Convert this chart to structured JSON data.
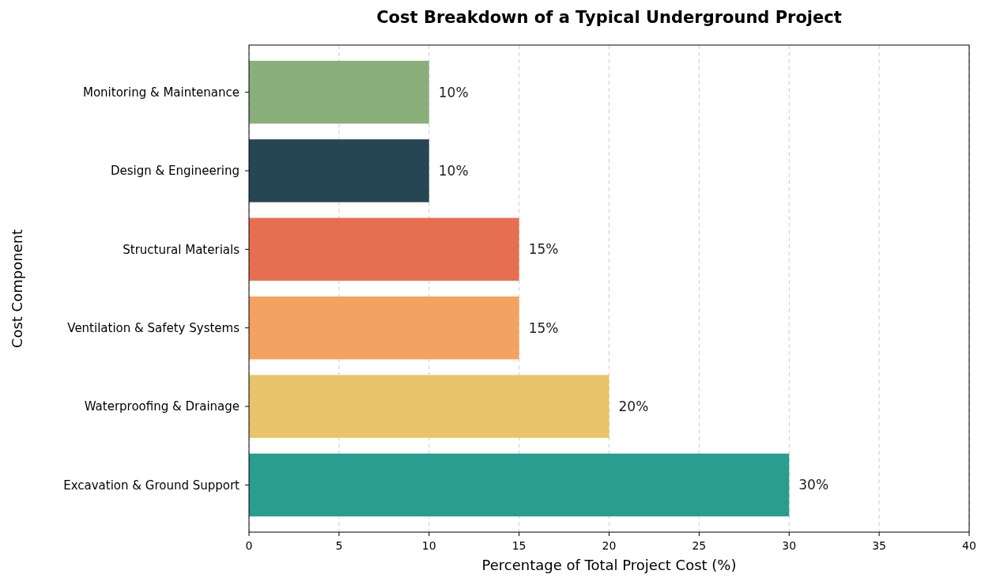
{
  "chart_data": {
    "type": "bar",
    "orientation": "horizontal",
    "title": "Cost Breakdown of a Typical Underground Project",
    "xlabel": "Percentage of Total Project Cost (%)",
    "ylabel": "Cost Component",
    "categories": [
      "Monitoring & Maintenance",
      "Design & Engineering",
      "Structural Materials",
      "Ventilation & Safety Systems",
      "Waterproofing & Drainage",
      "Excavation & Ground Support"
    ],
    "values": [
      10,
      10,
      15,
      15,
      20,
      30
    ],
    "colors": [
      "#8aaf7a",
      "#264653",
      "#e76f51",
      "#f4a261",
      "#e9c46a",
      "#2a9d8f"
    ],
    "value_labels": [
      "10%",
      "10%",
      "15%",
      "15%",
      "20%",
      "30%"
    ],
    "xlim": [
      0,
      40
    ],
    "xticks": [
      0,
      5,
      10,
      15,
      20,
      25,
      30,
      35,
      40
    ],
    "grid": "x"
  }
}
